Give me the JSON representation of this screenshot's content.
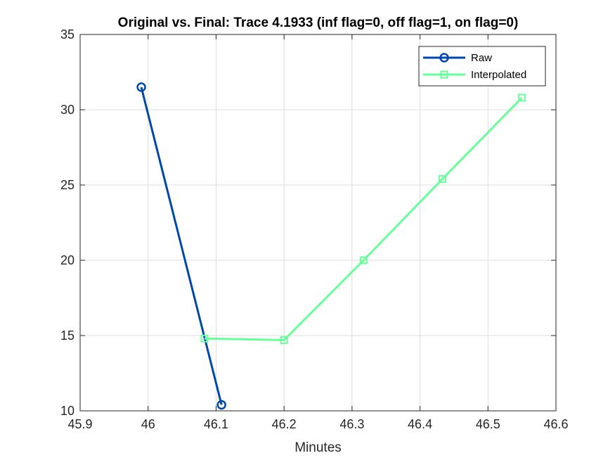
{
  "chart_data": {
    "type": "line",
    "title": "Original vs. Final: Trace 4.1933 (inf flag=0, off flag=1, on flag=0)",
    "xlabel": "Minutes",
    "ylabel": "",
    "xlim": [
      45.9,
      46.6
    ],
    "ylim": [
      10,
      35
    ],
    "xticks": [
      45.9,
      46.0,
      46.1,
      46.2,
      46.3,
      46.4,
      46.5,
      46.6
    ],
    "xtick_labels": [
      "45.9",
      "46",
      "46.1",
      "46.2",
      "46.3",
      "46.4",
      "46.5",
      "46.6"
    ],
    "yticks": [
      10,
      15,
      20,
      25,
      30,
      35
    ],
    "ytick_labels": [
      "10",
      "15",
      "20",
      "25",
      "30",
      "35"
    ],
    "grid": true,
    "legend_position": "top-right",
    "series": [
      {
        "name": "Raw",
        "color": "#0047AB",
        "marker": "circle",
        "x": [
          45.99,
          46.108
        ],
        "y": [
          31.5,
          10.4
        ]
      },
      {
        "name": "Interpolated",
        "color": "#66FF99",
        "marker": "square",
        "x": [
          46.083,
          46.2,
          46.317,
          46.433,
          46.55
        ],
        "y": [
          14.8,
          14.7,
          20.0,
          25.4,
          30.8
        ]
      }
    ]
  }
}
